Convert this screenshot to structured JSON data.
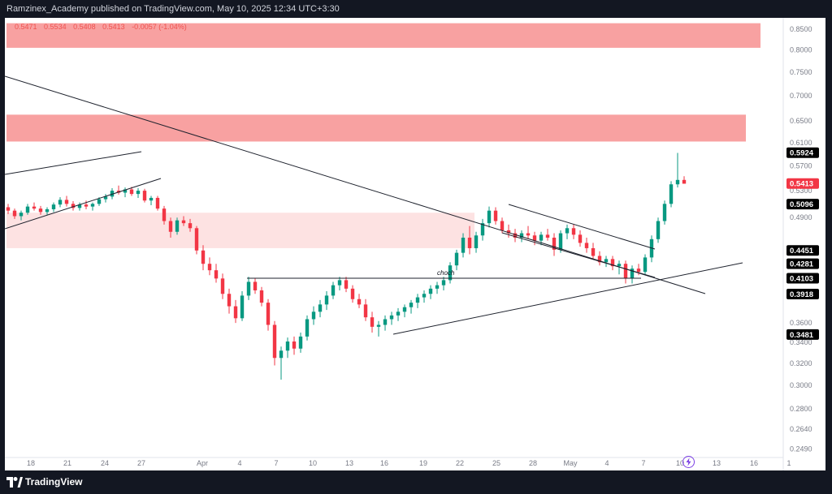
{
  "header": {
    "publisher_line": "Ramzinex_Academy published on TradingView.com, May 10, 2025 12:34 UTC+3:30"
  },
  "legend": {
    "open": "0.5471",
    "high": "0.5534",
    "low": "0.5408",
    "close": "0.5413",
    "change": "-0.0057 (-1.04%)"
  },
  "footer": {
    "brand": "TradingView"
  },
  "colors": {
    "up": "#089981",
    "down": "#f23645",
    "zone_strong": "#f8a1a1",
    "zone_light": "#fde2e2",
    "line": "#1e222d",
    "price_tag_dark": "#000000",
    "price_tag_red": "#f23645"
  },
  "chart_data": {
    "type": "candlestick",
    "x_tick_labels": [
      "18",
      "21",
      "24",
      "27",
      "Apr",
      "4",
      "7",
      "10",
      "13",
      "16",
      "19",
      "22",
      "25",
      "28",
      "May",
      "4",
      "7",
      "10",
      "13",
      "16",
      "1"
    ],
    "y_scale": "log",
    "y_tick_labels": [
      "0.8500",
      "0.8000",
      "0.7500",
      "0.7000",
      "0.6500",
      "0.6100",
      "0.5700",
      "0.5300",
      "0.4900",
      "0.3600",
      "0.3400",
      "0.3200",
      "0.3000",
      "0.2800",
      "0.2640",
      "0.2490"
    ],
    "price_tags": [
      {
        "value": "0.5924",
        "style": "dark"
      },
      {
        "value": "0.5413",
        "style": "red"
      },
      {
        "value": "0.5096",
        "style": "dark"
      },
      {
        "value": "0.4451",
        "style": "dark"
      },
      {
        "value": "0.4281",
        "style": "dark"
      },
      {
        "value": "0.4103",
        "style": "dark"
      },
      {
        "value": "0.3918",
        "style": "dark"
      },
      {
        "value": "0.3481",
        "style": "dark"
      }
    ],
    "zones": [
      {
        "name": "supply-top",
        "from": 0.805,
        "to": 0.865,
        "style": "strong"
      },
      {
        "name": "supply-mid",
        "from": 0.612,
        "to": 0.662,
        "style": "strong"
      },
      {
        "name": "demand-mid",
        "from": 0.448,
        "to": 0.497,
        "style": "light"
      }
    ],
    "annotations": [
      {
        "text": "choch",
        "at_price": 0.4103
      }
    ],
    "candles_ohlc_approx": [
      [
        0.505,
        0.51,
        0.495,
        0.5
      ],
      [
        0.5,
        0.503,
        0.488,
        0.492
      ],
      [
        0.492,
        0.5,
        0.486,
        0.497
      ],
      [
        0.497,
        0.51,
        0.494,
        0.506
      ],
      [
        0.506,
        0.512,
        0.5,
        0.503
      ],
      [
        0.503,
        0.507,
        0.494,
        0.498
      ],
      [
        0.498,
        0.505,
        0.494,
        0.502
      ],
      [
        0.502,
        0.512,
        0.498,
        0.509
      ],
      [
        0.509,
        0.52,
        0.505,
        0.516
      ],
      [
        0.516,
        0.522,
        0.506,
        0.51
      ],
      [
        0.51,
        0.514,
        0.5,
        0.504
      ],
      [
        0.504,
        0.512,
        0.5,
        0.509
      ],
      [
        0.509,
        0.515,
        0.502,
        0.506
      ],
      [
        0.506,
        0.512,
        0.5,
        0.51
      ],
      [
        0.51,
        0.52,
        0.507,
        0.517
      ],
      [
        0.517,
        0.525,
        0.512,
        0.521
      ],
      [
        0.521,
        0.534,
        0.517,
        0.53
      ],
      [
        0.53,
        0.538,
        0.524,
        0.527
      ],
      [
        0.527,
        0.535,
        0.52,
        0.532
      ],
      [
        0.532,
        0.536,
        0.522,
        0.525
      ],
      [
        0.525,
        0.534,
        0.519,
        0.53
      ],
      [
        0.53,
        0.533,
        0.512,
        0.515
      ],
      [
        0.515,
        0.522,
        0.508,
        0.519
      ],
      [
        0.519,
        0.522,
        0.5,
        0.503
      ],
      [
        0.503,
        0.507,
        0.48,
        0.485
      ],
      [
        0.485,
        0.49,
        0.462,
        0.47
      ],
      [
        0.47,
        0.49,
        0.466,
        0.486
      ],
      [
        0.486,
        0.492,
        0.478,
        0.482
      ],
      [
        0.482,
        0.488,
        0.47,
        0.475
      ],
      [
        0.475,
        0.478,
        0.44,
        0.445
      ],
      [
        0.445,
        0.452,
        0.42,
        0.428
      ],
      [
        0.428,
        0.436,
        0.414,
        0.42
      ],
      [
        0.42,
        0.428,
        0.405,
        0.41
      ],
      [
        0.41,
        0.416,
        0.386,
        0.392
      ],
      [
        0.392,
        0.398,
        0.37,
        0.378
      ],
      [
        0.378,
        0.385,
        0.36,
        0.365
      ],
      [
        0.365,
        0.395,
        0.362,
        0.39
      ],
      [
        0.39,
        0.412,
        0.385,
        0.406
      ],
      [
        0.406,
        0.41,
        0.392,
        0.396
      ],
      [
        0.396,
        0.4,
        0.378,
        0.382
      ],
      [
        0.382,
        0.386,
        0.352,
        0.358
      ],
      [
        0.358,
        0.362,
        0.318,
        0.325
      ],
      [
        0.325,
        0.336,
        0.305,
        0.332
      ],
      [
        0.332,
        0.345,
        0.325,
        0.341
      ],
      [
        0.341,
        0.346,
        0.328,
        0.334
      ],
      [
        0.334,
        0.35,
        0.33,
        0.346
      ],
      [
        0.346,
        0.368,
        0.342,
        0.364
      ],
      [
        0.364,
        0.378,
        0.358,
        0.372
      ],
      [
        0.372,
        0.385,
        0.366,
        0.38
      ],
      [
        0.38,
        0.395,
        0.374,
        0.39
      ],
      [
        0.39,
        0.406,
        0.386,
        0.402
      ],
      [
        0.402,
        0.412,
        0.396,
        0.408
      ],
      [
        0.408,
        0.412,
        0.394,
        0.398
      ],
      [
        0.398,
        0.402,
        0.382,
        0.386
      ],
      [
        0.386,
        0.392,
        0.376,
        0.38
      ],
      [
        0.38,
        0.386,
        0.362,
        0.366
      ],
      [
        0.366,
        0.372,
        0.35,
        0.356
      ],
      [
        0.356,
        0.362,
        0.346,
        0.358
      ],
      [
        0.358,
        0.368,
        0.352,
        0.364
      ],
      [
        0.364,
        0.372,
        0.358,
        0.368
      ],
      [
        0.368,
        0.376,
        0.362,
        0.372
      ],
      [
        0.372,
        0.38,
        0.366,
        0.377
      ],
      [
        0.377,
        0.385,
        0.37,
        0.382
      ],
      [
        0.382,
        0.392,
        0.376,
        0.388
      ],
      [
        0.388,
        0.396,
        0.382,
        0.392
      ],
      [
        0.392,
        0.402,
        0.386,
        0.398
      ],
      [
        0.398,
        0.406,
        0.392,
        0.402
      ],
      [
        0.402,
        0.412,
        0.396,
        0.408
      ],
      [
        0.408,
        0.43,
        0.404,
        0.426
      ],
      [
        0.426,
        0.446,
        0.42,
        0.442
      ],
      [
        0.442,
        0.468,
        0.436,
        0.462
      ],
      [
        0.462,
        0.478,
        0.44,
        0.448
      ],
      [
        0.448,
        0.47,
        0.442,
        0.465
      ],
      [
        0.465,
        0.488,
        0.458,
        0.482
      ],
      [
        0.482,
        0.506,
        0.476,
        0.5
      ],
      [
        0.5,
        0.505,
        0.48,
        0.485
      ],
      [
        0.485,
        0.49,
        0.468,
        0.472
      ],
      [
        0.472,
        0.48,
        0.462,
        0.468
      ],
      [
        0.468,
        0.474,
        0.456,
        0.462
      ],
      [
        0.462,
        0.472,
        0.456,
        0.468
      ],
      [
        0.468,
        0.478,
        0.46,
        0.465
      ],
      [
        0.465,
        0.47,
        0.452,
        0.458
      ],
      [
        0.458,
        0.47,
        0.452,
        0.466
      ],
      [
        0.466,
        0.474,
        0.458,
        0.462
      ],
      [
        0.462,
        0.468,
        0.438,
        0.446
      ],
      [
        0.446,
        0.472,
        0.442,
        0.468
      ],
      [
        0.468,
        0.48,
        0.46,
        0.475
      ],
      [
        0.475,
        0.48,
        0.46,
        0.466
      ],
      [
        0.466,
        0.472,
        0.45,
        0.455
      ],
      [
        0.455,
        0.462,
        0.442,
        0.448
      ],
      [
        0.448,
        0.455,
        0.434,
        0.438
      ],
      [
        0.438,
        0.444,
        0.426,
        0.43
      ],
      [
        0.43,
        0.438,
        0.424,
        0.434
      ],
      [
        0.434,
        0.438,
        0.42,
        0.425
      ],
      [
        0.425,
        0.432,
        0.415,
        0.428
      ],
      [
        0.428,
        0.432,
        0.404,
        0.41
      ],
      [
        0.41,
        0.426,
        0.404,
        0.422
      ],
      [
        0.422,
        0.428,
        0.414,
        0.418
      ],
      [
        0.418,
        0.44,
        0.414,
        0.436
      ],
      [
        0.436,
        0.465,
        0.43,
        0.46
      ],
      [
        0.46,
        0.49,
        0.455,
        0.485
      ],
      [
        0.485,
        0.515,
        0.48,
        0.51
      ],
      [
        0.51,
        0.545,
        0.505,
        0.54
      ],
      [
        0.54,
        0.592,
        0.535,
        0.547
      ],
      [
        0.547,
        0.553,
        0.541,
        0.541
      ]
    ]
  }
}
